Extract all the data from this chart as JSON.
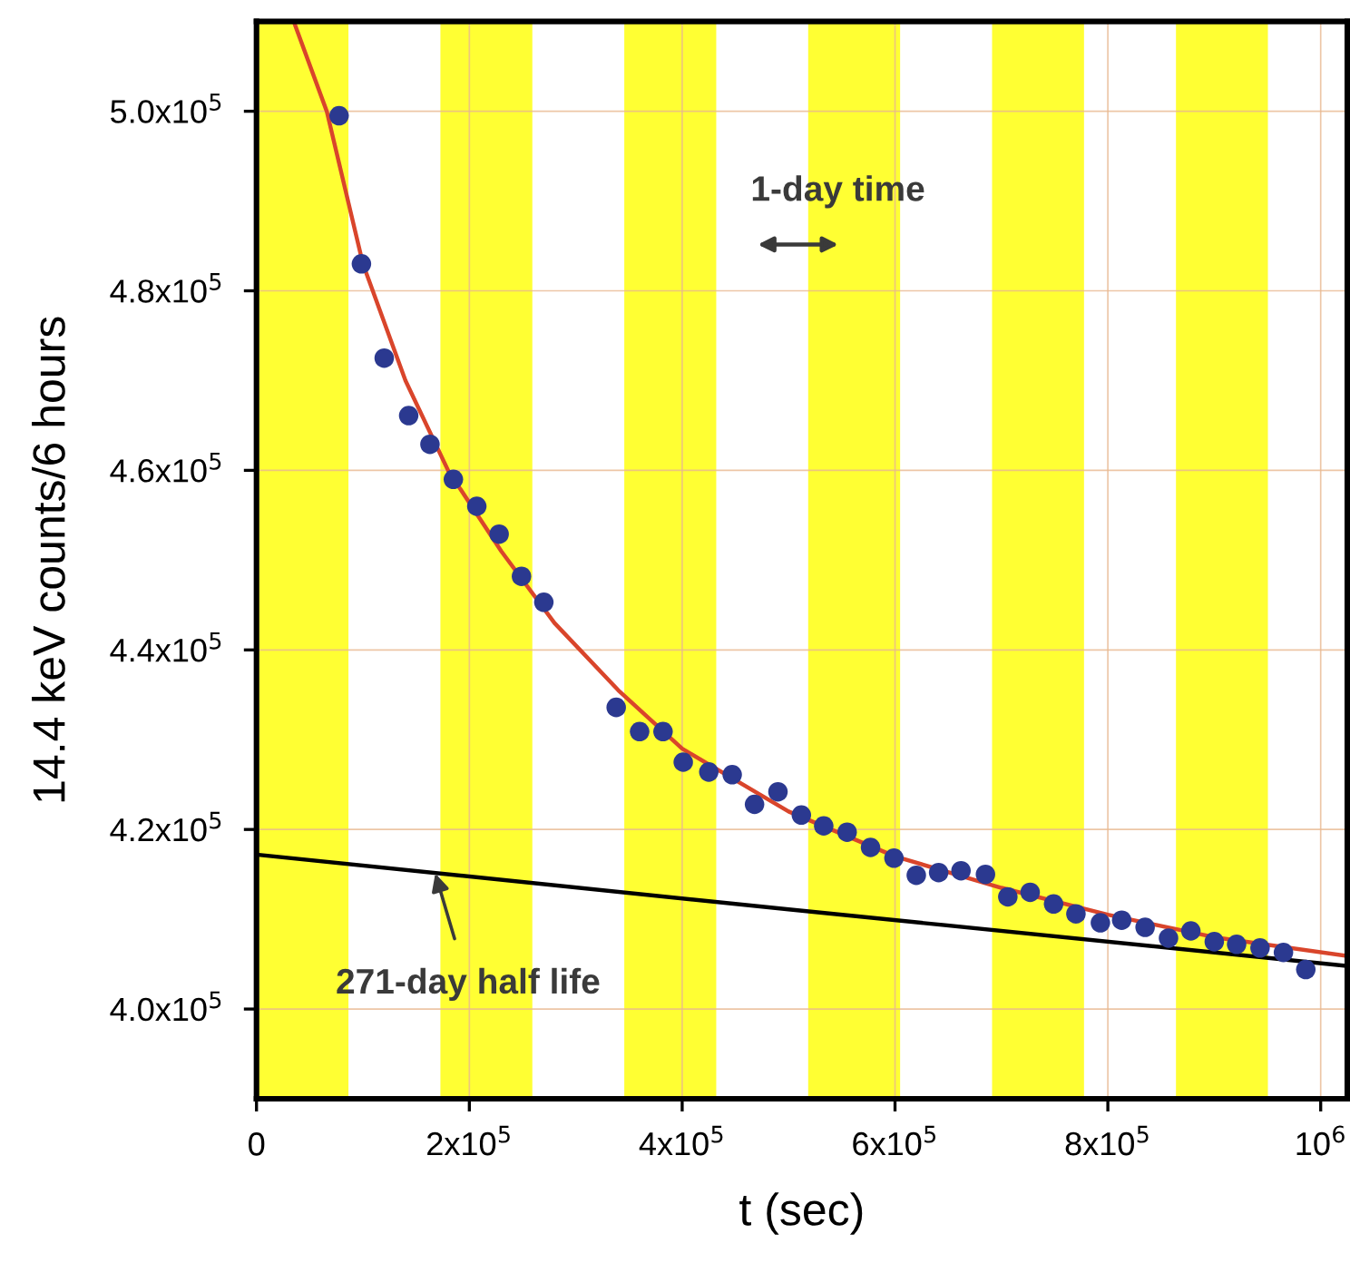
{
  "chart_data": {
    "type": "scatter",
    "xlabel": "t (sec)",
    "ylabel": "14.4 keV counts/6 hours",
    "xlim": [
      0,
      1025000
    ],
    "ylim": [
      390000,
      510000
    ],
    "xticks": [
      0,
      {
        "value": 200000,
        "label": "2x10$^{5}$"
      },
      {
        "value": 400000,
        "label": "4x10$^{5}$"
      },
      {
        "value": 600000,
        "label": "6x10$^{5}$"
      },
      {
        "value": 800000,
        "label": "8x10$^{5}$"
      },
      {
        "value": 1000000,
        "label": "10$^{6}$"
      }
    ],
    "yticks": [
      {
        "value": 400000,
        "label": "4.0x10$^{5}$"
      },
      {
        "value": 420000,
        "label": "4.2x10$^{5}$"
      },
      {
        "value": 440000,
        "label": "4.4x10$^{5}$"
      },
      {
        "value": 460000,
        "label": "4.6x10$^{5}$"
      },
      {
        "value": 480000,
        "label": "4.8x10$^{5}$"
      },
      {
        "value": 500000,
        "label": "5.0x10$^{5}$"
      }
    ],
    "grid": true,
    "legend": false,
    "bands": [
      {
        "axis": "x",
        "from": 0,
        "to": 86400,
        "color": "#ffff33"
      },
      {
        "axis": "x",
        "from": 172800,
        "to": 259200,
        "color": "#ffff33"
      },
      {
        "axis": "x",
        "from": 345600,
        "to": 432000,
        "color": "#ffff33"
      },
      {
        "axis": "x",
        "from": 518400,
        "to": 604800,
        "color": "#ffff33"
      },
      {
        "axis": "x",
        "from": 691200,
        "to": 777600,
        "color": "#ffff33"
      },
      {
        "axis": "x",
        "from": 864000,
        "to": 950400,
        "color": "#ffff33"
      }
    ],
    "series": [
      {
        "type": "line",
        "color": "#d9452b",
        "x": [
          35000,
          66000,
          100000,
          140000,
          180000,
          230000,
          280000,
          340000,
          400000,
          500000,
          600000,
          700000,
          800000,
          900000,
          1025000
        ],
        "values": [
          510000,
          500000,
          483000,
          470000,
          460000,
          451000,
          443000,
          435500,
          429000,
          422000,
          417000,
          413500,
          410500,
          408000,
          405900
        ]
      },
      {
        "type": "line",
        "color": "#000000",
        "x": [
          0,
          500000,
          1025000
        ],
        "values": [
          417200,
          411100,
          404800
        ]
      },
      {
        "color": "#2b3990",
        "marker": "circle",
        "x": [
          77600,
          98600,
          120000,
          143000,
          163000,
          185000,
          207000,
          228000,
          249000,
          270000,
          338000,
          360000,
          382000,
          401000,
          425000,
          447000,
          468000,
          490000,
          512000,
          533000,
          555000,
          577000,
          599000,
          620000,
          641000,
          662000,
          685000,
          706000,
          727000,
          749000,
          770000,
          793000,
          813000,
          835000,
          857000,
          878000,
          900000,
          921000,
          943000,
          965000,
          986000
        ],
        "values": [
          499500,
          483000,
          472500,
          466100,
          462900,
          459000,
          456000,
          452900,
          448200,
          445300,
          433600,
          430900,
          430900,
          427500,
          426400,
          426100,
          422800,
          424200,
          421600,
          420400,
          419700,
          418000,
          416800,
          414900,
          415200,
          415400,
          415000,
          412500,
          413000,
          411700,
          410600,
          409600,
          409900,
          409100,
          407900,
          408700,
          407500,
          407200,
          406800,
          406300,
          404400
        ]
      }
    ],
    "annotations": [
      "1-day time",
      {
        "text": "271-day half life",
        "x": 168000,
        "y": 415100
      }
    ]
  }
}
